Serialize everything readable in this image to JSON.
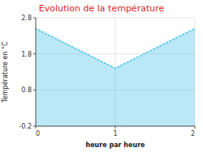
{
  "chart_data": {
    "type": "area",
    "title": "Evolution de la température",
    "xlabel": "heure par heure",
    "ylabel": "Température en °C",
    "x": [
      0,
      1,
      2
    ],
    "values": [
      2.5,
      1.4,
      2.5
    ],
    "color": "#66ccee",
    "line_style": "dotted",
    "xlim": [
      0,
      2
    ],
    "ylim": [
      -0.2,
      2.8
    ],
    "xticks": [
      0,
      1,
      2
    ],
    "yticks": [
      -0.2,
      0.8,
      1.8,
      2.8
    ],
    "grid": true
  }
}
